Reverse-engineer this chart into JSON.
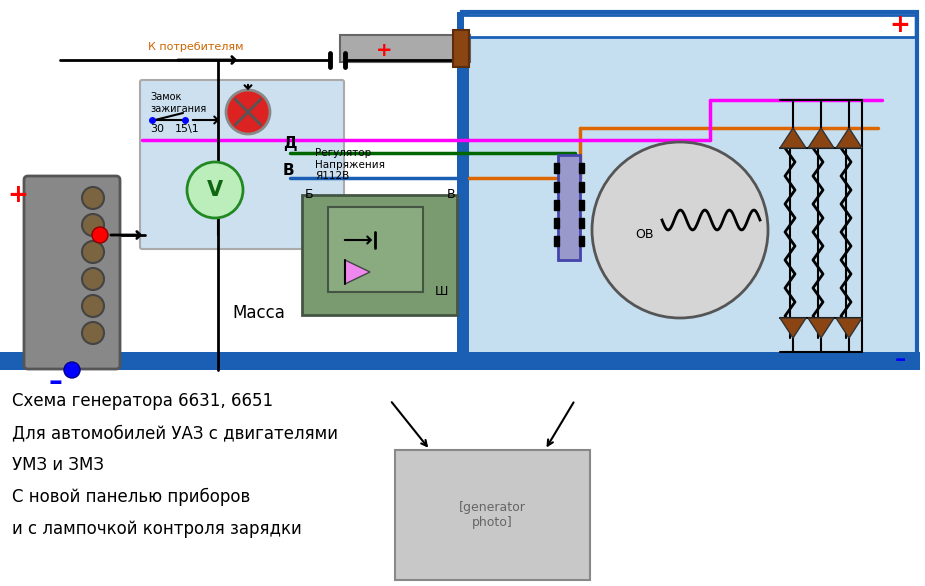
{
  "bg_color": "#ffffff",
  "light_blue_bg": "#c5dff0",
  "blue_wire": "#1a5fb4",
  "green_wire": "#006600",
  "magenta_wire": "#ff00ff",
  "orange_wire": "#dd6600",
  "brown": "#8B4513",
  "panel_blue": "#cce0f0",
  "regulator_green": "#7a9a70",
  "connector_purple": "#9999cc",
  "battery_color": "#888888",
  "line1": "Схема генератора 6631, 6651",
  "line2": "Для автомобилей УАЗ с двигателями",
  "line3": "УМЗ и ЗМЗ",
  "line4": "С новой панелью приборов",
  "line5": "и с лампочкой контроля зарядки",
  "k_potreb": "К потребителям",
  "zamok": "Замок\nзажигания",
  "massa": "Масса",
  "regulator": "Регулятор\nНапряжения\nЯ112В",
  "label_D": "Д",
  "label_B": "В",
  "label_Sh": "Ш",
  "label_Bb": "Б",
  "label_Vv": "В",
  "label_30": "30",
  "label_151": "15\\1",
  "label_OV": "ОВ"
}
